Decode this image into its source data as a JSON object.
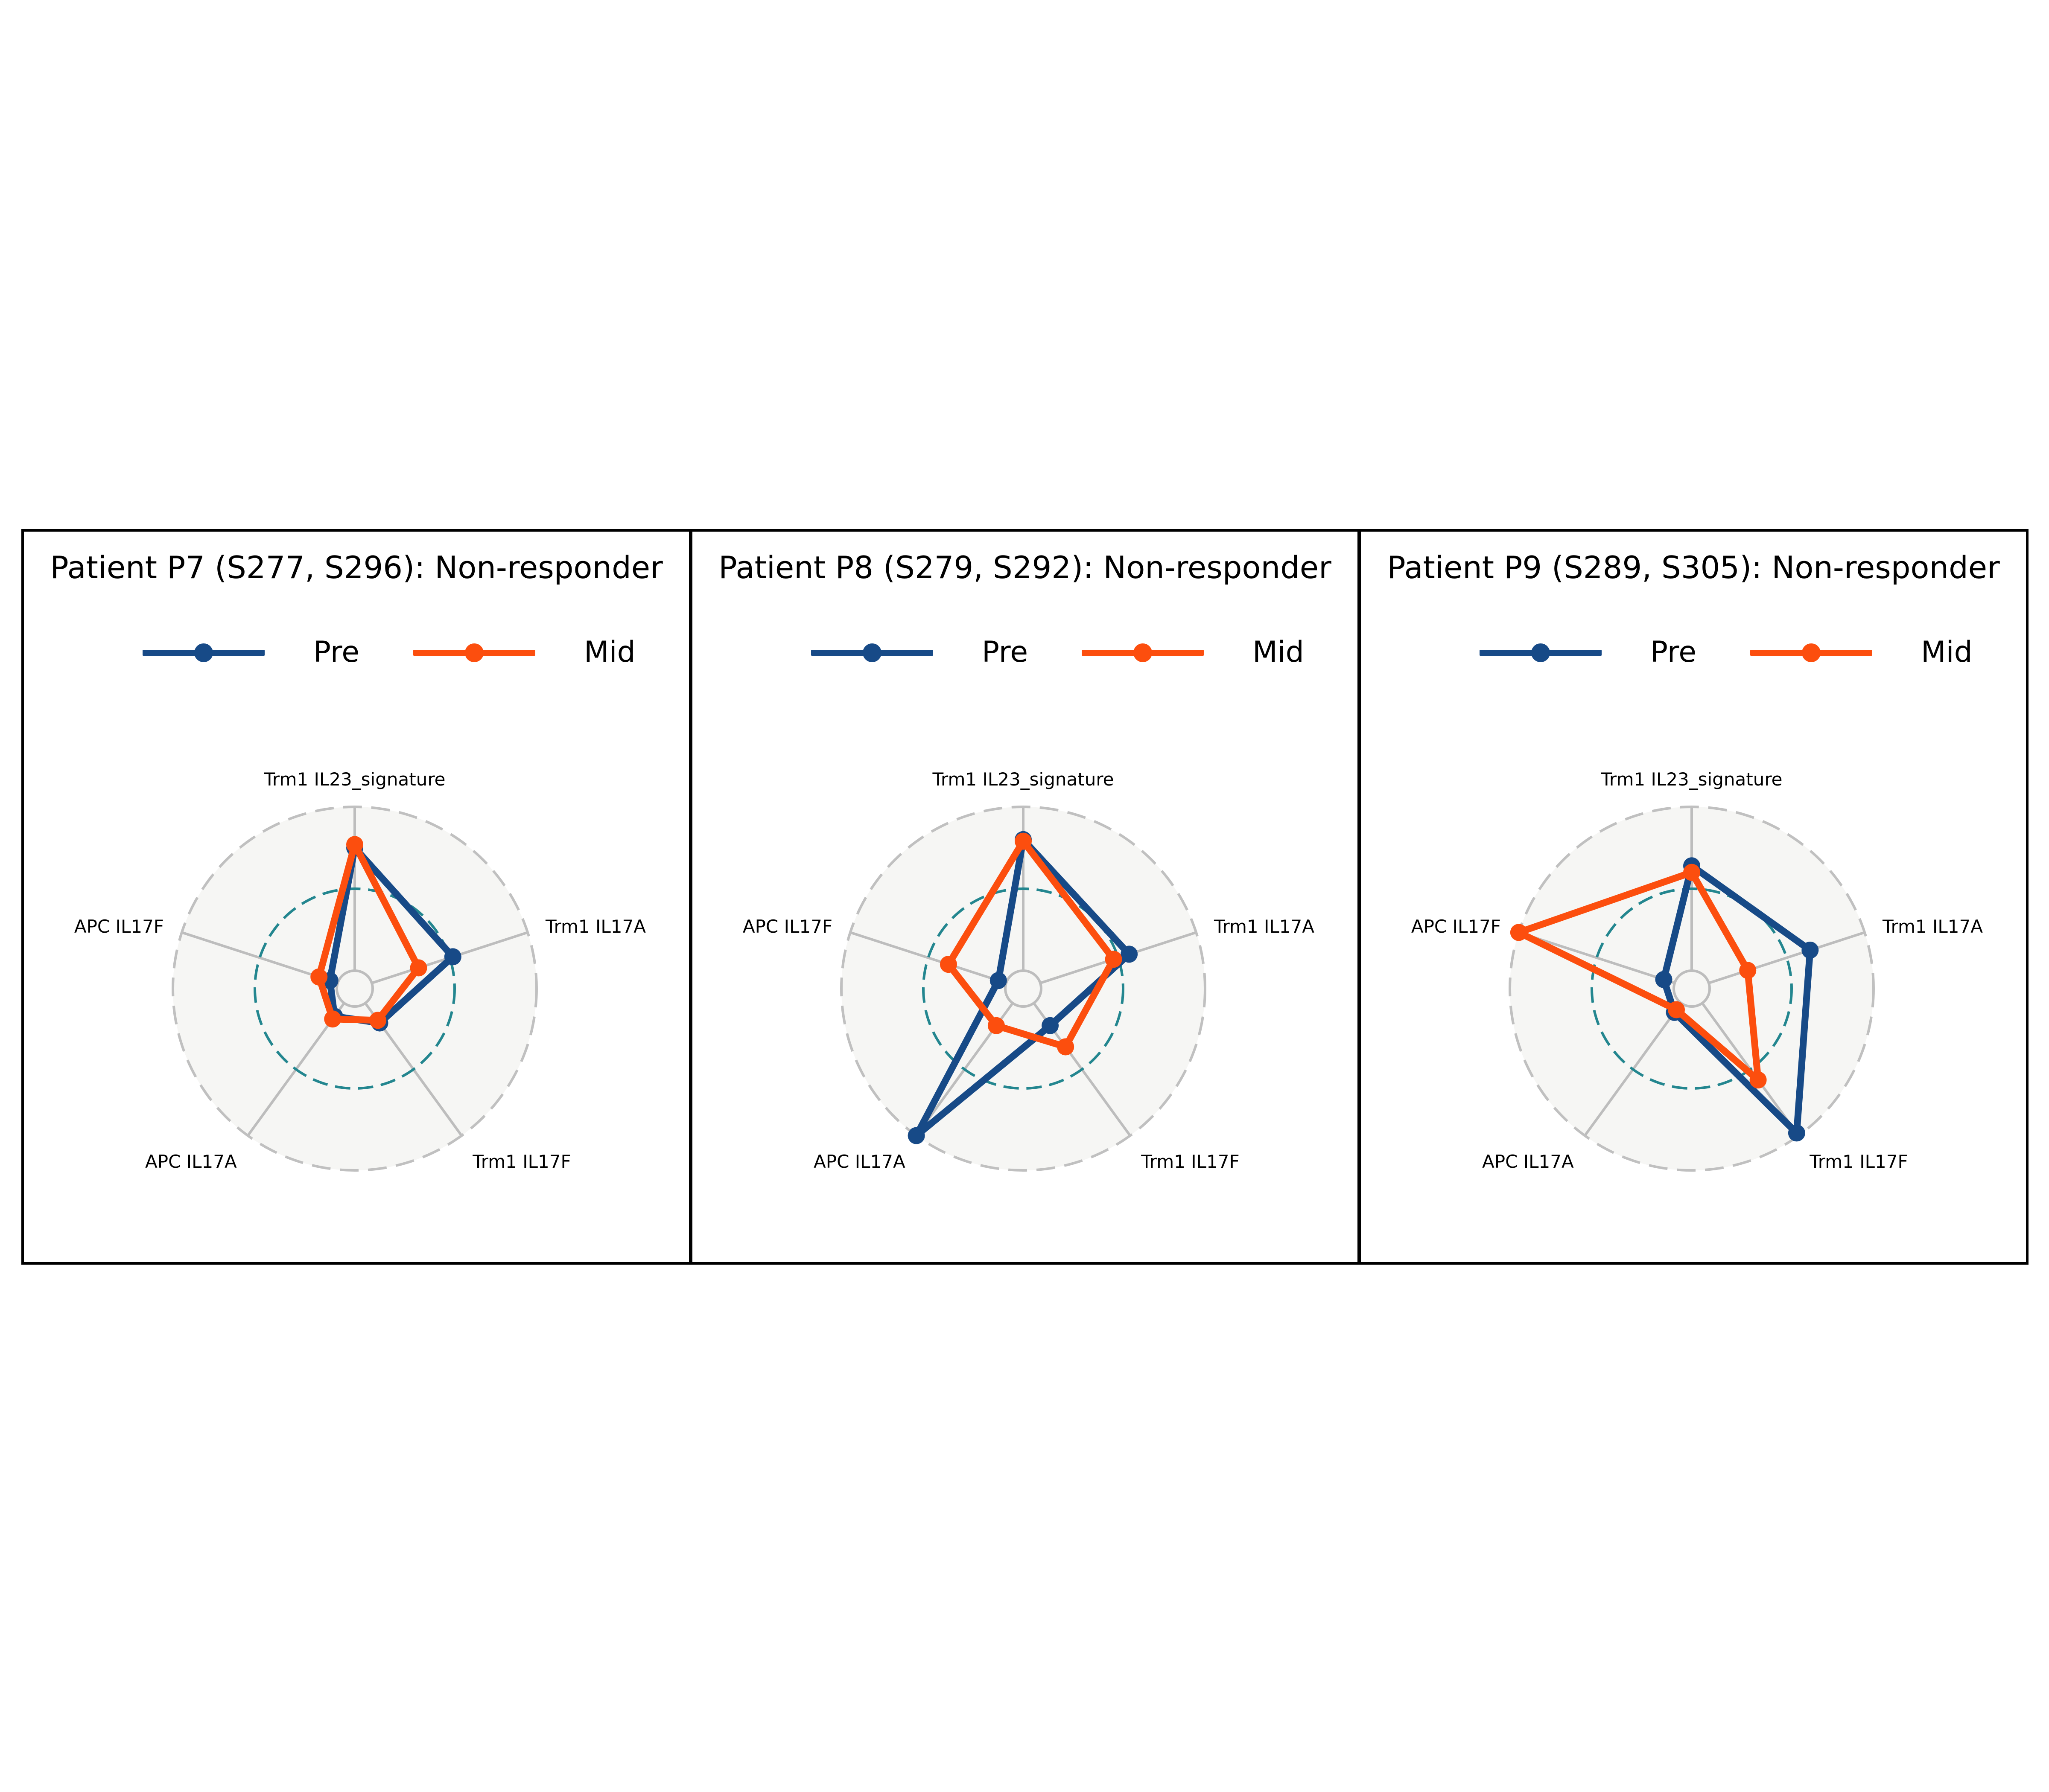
{
  "legend_labels": {
    "pre": "Pre",
    "mid": "Mid"
  },
  "colors": {
    "pre": "#174a87",
    "mid": "#fc4e0e",
    "background_disc": "#f6f6f4",
    "outer_dash": "#c0c0c0",
    "spoke": "#bdbdbd",
    "reference_dash": "#23868f"
  },
  "chart_data": [
    {
      "type": "radar",
      "title": "Patient P7 (S277, S296): Non-responder",
      "axes": [
        "Trm1 IL23_signature",
        "Trm1 IL17A",
        "Trm1 IL17F",
        "APC IL17A",
        "APC IL17F"
      ],
      "reference_level": 0.5,
      "rlim": [
        0,
        1
      ],
      "series": [
        {
          "name": "Pre",
          "values": [
            0.75,
            0.52,
            0.15,
            0.1,
            0.05
          ]
        },
        {
          "name": "Mid",
          "values": [
            0.77,
            0.3,
            0.13,
            0.12,
            0.12
          ]
        }
      ]
    },
    {
      "type": "radar",
      "title": "Patient P8 (S279, S292): Non-responder",
      "axes": [
        "Trm1 IL23_signature",
        "Trm1 IL17A",
        "Trm1 IL17F",
        "APC IL17A",
        "APC IL17F"
      ],
      "reference_level": 0.5,
      "rlim": [
        0,
        1
      ],
      "series": [
        {
          "name": "Pre",
          "values": [
            0.8,
            0.57,
            0.17,
            1.0,
            0.05
          ]
        },
        {
          "name": "Mid",
          "values": [
            0.79,
            0.47,
            0.33,
            0.17,
            0.37
          ]
        }
      ]
    },
    {
      "type": "radar",
      "title": "Patient P9 (S289, S305): Non-responder",
      "axes": [
        "Trm1 IL23_signature",
        "Trm1 IL17A",
        "Trm1 IL17F",
        "APC IL17A",
        "APC IL17F"
      ],
      "reference_level": 0.5,
      "rlim": [
        0,
        1
      ],
      "series": [
        {
          "name": "Pre",
          "values": [
            0.64,
            0.65,
            0.98,
            0.07,
            0.07
          ]
        },
        {
          "name": "Mid",
          "values": [
            0.6,
            0.25,
            0.58,
            0.05,
            1.0
          ]
        }
      ]
    }
  ]
}
